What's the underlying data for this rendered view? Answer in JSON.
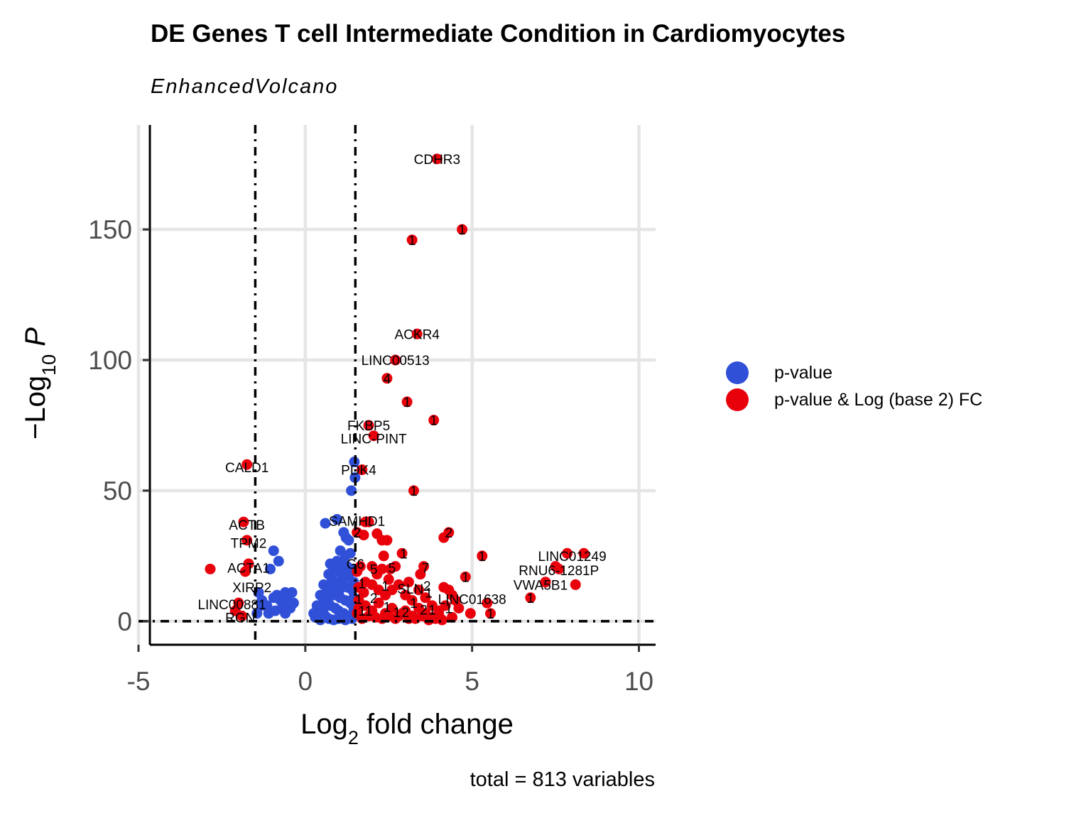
{
  "chart_data": {
    "type": "scatter",
    "title": "DE Genes T cell Intermediate Condition in Cardiomyocytes",
    "subtitle": "EnhancedVolcano",
    "caption": "total = 813 variables",
    "xlabel": {
      "base": "Log",
      "sub": "2",
      "rest": " fold change"
    },
    "ylabel": {
      "minus": "−",
      "base": "Log",
      "sub": "10",
      "var": "P"
    },
    "xlim": [
      -5,
      10.5
    ],
    "ylim": [
      -9,
      190
    ],
    "xticks": [
      -5,
      0,
      5,
      10
    ],
    "yticks": [
      0,
      50,
      100,
      150
    ],
    "fc_cutoff": 1.5,
    "p_cutoff_log": 0,
    "grid": true,
    "legend_position": "right",
    "colors": {
      "pvalue": "#3050d8",
      "both": "#e8000b",
      "grid": "#e5e5e5"
    },
    "legend": [
      {
        "name": "p-value",
        "color": "#3050d8"
      },
      {
        "name": "p-value & Log (base 2) FC",
        "color": "#e8000b"
      }
    ],
    "series": [
      {
        "name": "p-value",
        "color": "#3050d8",
        "points": [
          [
            1.38,
            50
          ],
          [
            1.47,
            61
          ],
          [
            1.49,
            55
          ],
          [
            0.6,
            37.5
          ],
          [
            0.95,
            39
          ],
          [
            1.15,
            34
          ],
          [
            1.22,
            32
          ],
          [
            1.3,
            31
          ],
          [
            1.05,
            27
          ],
          [
            1.2,
            25
          ],
          [
            1.35,
            26
          ],
          [
            0.95,
            23
          ],
          [
            1.1,
            22
          ],
          [
            1.25,
            21
          ],
          [
            1.4,
            20
          ],
          [
            0.75,
            22
          ],
          [
            0.85,
            20
          ],
          [
            1.0,
            19
          ],
          [
            1.15,
            18
          ],
          [
            1.3,
            17
          ],
          [
            0.7,
            18
          ],
          [
            0.8,
            16
          ],
          [
            0.95,
            15
          ],
          [
            1.1,
            14
          ],
          [
            1.25,
            13
          ],
          [
            1.4,
            12
          ],
          [
            0.55,
            14
          ],
          [
            0.65,
            12
          ],
          [
            0.8,
            11
          ],
          [
            0.9,
            10
          ],
          [
            1.05,
            9
          ],
          [
            1.2,
            8
          ],
          [
            1.35,
            7
          ],
          [
            0.45,
            10
          ],
          [
            0.55,
            8
          ],
          [
            0.65,
            7
          ],
          [
            0.75,
            6
          ],
          [
            0.9,
            5
          ],
          [
            1.0,
            4
          ],
          [
            1.15,
            3
          ],
          [
            1.3,
            2
          ],
          [
            0.35,
            6
          ],
          [
            0.4,
            4
          ],
          [
            0.5,
            3
          ],
          [
            0.6,
            2
          ],
          [
            0.7,
            1
          ],
          [
            0.85,
            0.5
          ],
          [
            1.0,
            1
          ],
          [
            1.2,
            0.5
          ],
          [
            1.4,
            1
          ],
          [
            0.25,
            3
          ],
          [
            0.3,
            1.5
          ],
          [
            0.45,
            0.5
          ],
          [
            0.55,
            5
          ],
          [
            0.95,
            12
          ],
          [
            1.1,
            16
          ],
          [
            1.45,
            15
          ],
          [
            1.45,
            5
          ],
          [
            1.45,
            9
          ],
          [
            0.85,
            14
          ],
          [
            1.0,
            11
          ],
          [
            0.7,
            9
          ],
          [
            -1.05,
            20
          ],
          [
            -0.95,
            27
          ],
          [
            -0.8,
            23
          ],
          [
            -0.6,
            11
          ],
          [
            -0.4,
            11
          ],
          [
            -0.5,
            7
          ],
          [
            -0.45,
            5
          ],
          [
            -0.7,
            5
          ],
          [
            -0.9,
            4
          ],
          [
            -1.1,
            3
          ],
          [
            -1.3,
            8
          ],
          [
            -1.4,
            11
          ],
          [
            -1.3,
            6
          ],
          [
            -0.55,
            9
          ],
          [
            -0.75,
            8
          ],
          [
            -0.35,
            7
          ],
          [
            -1.15,
            6
          ],
          [
            -0.95,
            9
          ],
          [
            -1.45,
            3
          ],
          [
            -0.85,
            10
          ],
          [
            -0.6,
            3
          ]
        ]
      },
      {
        "name": "p-value & Log (base 2) FC",
        "color": "#e8000b",
        "points": [
          [
            3.95,
            177
          ],
          [
            4.7,
            150
          ],
          [
            3.2,
            146
          ],
          [
            3.35,
            110
          ],
          [
            2.7,
            100
          ],
          [
            2.45,
            93
          ],
          [
            3.05,
            84
          ],
          [
            3.85,
            77
          ],
          [
            1.9,
            75
          ],
          [
            2.05,
            71
          ],
          [
            1.7,
            58
          ],
          [
            3.25,
            50
          ],
          [
            -1.75,
            60
          ],
          [
            -1.85,
            38
          ],
          [
            -1.75,
            31
          ],
          [
            -1.7,
            22
          ],
          [
            -1.8,
            19
          ],
          [
            -2.85,
            20
          ],
          [
            -2.0,
            7
          ],
          [
            -2.1,
            4
          ],
          [
            -1.9,
            2
          ],
          [
            4.15,
            32
          ],
          [
            4.3,
            34
          ],
          [
            2.15,
            33.5
          ],
          [
            2.3,
            31
          ],
          [
            2.45,
            31
          ],
          [
            2.9,
            26
          ],
          [
            2.35,
            25
          ],
          [
            5.3,
            25
          ],
          [
            1.55,
            34
          ],
          [
            1.75,
            33
          ],
          [
            1.8,
            38
          ],
          [
            1.9,
            38
          ],
          [
            3.55,
            21
          ],
          [
            3.45,
            18
          ],
          [
            4.8,
            17
          ],
          [
            7.85,
            26
          ],
          [
            8.35,
            26
          ],
          [
            7.5,
            21
          ],
          [
            7.6,
            20
          ],
          [
            7.2,
            15
          ],
          [
            8.1,
            14
          ],
          [
            6.75,
            9
          ],
          [
            5.45,
            7
          ],
          [
            5.55,
            3
          ],
          [
            4.95,
            3
          ],
          [
            4.15,
            13
          ],
          [
            4.3,
            12
          ],
          [
            4.4,
            10
          ],
          [
            4.5,
            8
          ],
          [
            2.0,
            21
          ],
          [
            2.15,
            18
          ],
          [
            2.3,
            20
          ],
          [
            2.55,
            20
          ],
          [
            2.7,
            21
          ],
          [
            1.55,
            19
          ],
          [
            1.65,
            21
          ],
          [
            1.6,
            13
          ],
          [
            1.8,
            15
          ],
          [
            2.0,
            14
          ],
          [
            2.2,
            12
          ],
          [
            2.4,
            10
          ],
          [
            2.6,
            12
          ],
          [
            2.8,
            14
          ],
          [
            3.0,
            10
          ],
          [
            3.2,
            8
          ],
          [
            3.4,
            12
          ],
          [
            3.6,
            9
          ],
          [
            3.8,
            6
          ],
          [
            4.0,
            4
          ],
          [
            4.2,
            6
          ],
          [
            4.6,
            5
          ],
          [
            1.6,
            8
          ],
          [
            1.8,
            6
          ],
          [
            2.0,
            4
          ],
          [
            2.2,
            7
          ],
          [
            2.4,
            3
          ],
          [
            2.6,
            5
          ],
          [
            2.8,
            2
          ],
          [
            3.0,
            4
          ],
          [
            3.2,
            2
          ],
          [
            3.4,
            5
          ],
          [
            3.6,
            3
          ],
          [
            3.8,
            1.5
          ],
          [
            4.0,
            2.5
          ],
          [
            4.4,
            1.5
          ],
          [
            1.55,
            3
          ],
          [
            1.7,
            1
          ],
          [
            1.9,
            2
          ],
          [
            2.1,
            1.5
          ],
          [
            2.3,
            1
          ],
          [
            2.5,
            2
          ],
          [
            2.7,
            1
          ],
          [
            2.9,
            3
          ],
          [
            3.1,
            1
          ],
          [
            3.3,
            1
          ],
          [
            3.5,
            2
          ],
          [
            3.7,
            0.5
          ],
          [
            3.9,
            1
          ],
          [
            4.1,
            0.5
          ],
          [
            1.6,
            5
          ],
          [
            1.75,
            11
          ],
          [
            2.5,
            16
          ],
          [
            3.1,
            15
          ]
        ]
      }
    ],
    "point_labels": [
      {
        "text": "CDHR3",
        "x": 3.95,
        "y": 177
      },
      {
        "text": "ACKR4",
        "x": 3.35,
        "y": 110
      },
      {
        "text": "LINC00513",
        "x": 2.7,
        "y": 100
      },
      {
        "text": "FKBP5",
        "x": 1.9,
        "y": 75
      },
      {
        "text": "LINC-PINT",
        "x": 2.05,
        "y": 70
      },
      {
        "text": "PDK4",
        "x": 1.6,
        "y": 58
      },
      {
        "text": "CALD1",
        "x": -1.75,
        "y": 59
      },
      {
        "text": "SAMHD1",
        "x": 1.55,
        "y": 38.5
      },
      {
        "text": "ACTB",
        "x": -1.75,
        "y": 37
      },
      {
        "text": "TPM2",
        "x": -1.7,
        "y": 30
      },
      {
        "text": "ACTA1",
        "x": -1.7,
        "y": 20.5
      },
      {
        "text": "XIRP2",
        "x": -1.6,
        "y": 13
      },
      {
        "text": "LINC00881",
        "x": -2.2,
        "y": 6.5
      },
      {
        "text": "RGN",
        "x": -1.95,
        "y": 1.5
      },
      {
        "text": "G6",
        "x": 1.5,
        "y": 22
      },
      {
        "text": "SLN",
        "x": 3.15,
        "y": 12.5
      },
      {
        "text": "LINC01638",
        "x": 5.0,
        "y": 8.5
      },
      {
        "text": "LINC01249",
        "x": 8.0,
        "y": 25
      },
      {
        "text": "RNU6-1281P",
        "x": 7.6,
        "y": 19.5
      },
      {
        "text": "VWA5B1",
        "x": 7.05,
        "y": 14
      },
      {
        "text": "1",
        "x": 4.7,
        "y": 150
      },
      {
        "text": "1",
        "x": 3.2,
        "y": 146
      },
      {
        "text": "4",
        "x": 2.45,
        "y": 93
      },
      {
        "text": "1",
        "x": 3.05,
        "y": 84
      },
      {
        "text": "1",
        "x": 3.85,
        "y": 77
      },
      {
        "text": "1",
        "x": 3.25,
        "y": 50
      },
      {
        "text": "2",
        "x": 4.3,
        "y": 34
      },
      {
        "text": "2",
        "x": 1.55,
        "y": 34
      },
      {
        "text": "1",
        "x": 2.95,
        "y": 26
      },
      {
        "text": "1",
        "x": 5.3,
        "y": 25
      },
      {
        "text": "5",
        "x": 2.05,
        "y": 20
      },
      {
        "text": "5",
        "x": 2.6,
        "y": 20.5
      },
      {
        "text": "7",
        "x": 3.6,
        "y": 20.5
      },
      {
        "text": "1",
        "x": 4.8,
        "y": 17
      },
      {
        "text": "1",
        "x": 1.7,
        "y": 14.5
      },
      {
        "text": "1",
        "x": 2.4,
        "y": 13.5
      },
      {
        "text": "2",
        "x": 3.65,
        "y": 13.5
      },
      {
        "text": "1",
        "x": 3.7,
        "y": 11
      },
      {
        "text": "1",
        "x": 6.75,
        "y": 9
      },
      {
        "text": "1",
        "x": 1.6,
        "y": 8.5
      },
      {
        "text": "2",
        "x": 2.05,
        "y": 9
      },
      {
        "text": "1",
        "x": 3.25,
        "y": 7
      },
      {
        "text": "1",
        "x": 1.7,
        "y": 4
      },
      {
        "text": "1",
        "x": 1.9,
        "y": 4
      },
      {
        "text": "1",
        "x": 2.45,
        "y": 5.5
      },
      {
        "text": "1",
        "x": 2.75,
        "y": 3.5
      },
      {
        "text": "2",
        "x": 3.0,
        "y": 3.5
      },
      {
        "text": "2",
        "x": 3.55,
        "y": 4.5
      },
      {
        "text": "1",
        "x": 3.8,
        "y": 4.5
      },
      {
        "text": "1",
        "x": 4.3,
        "y": 5
      },
      {
        "text": "1",
        "x": 5.55,
        "y": 3
      }
    ]
  }
}
